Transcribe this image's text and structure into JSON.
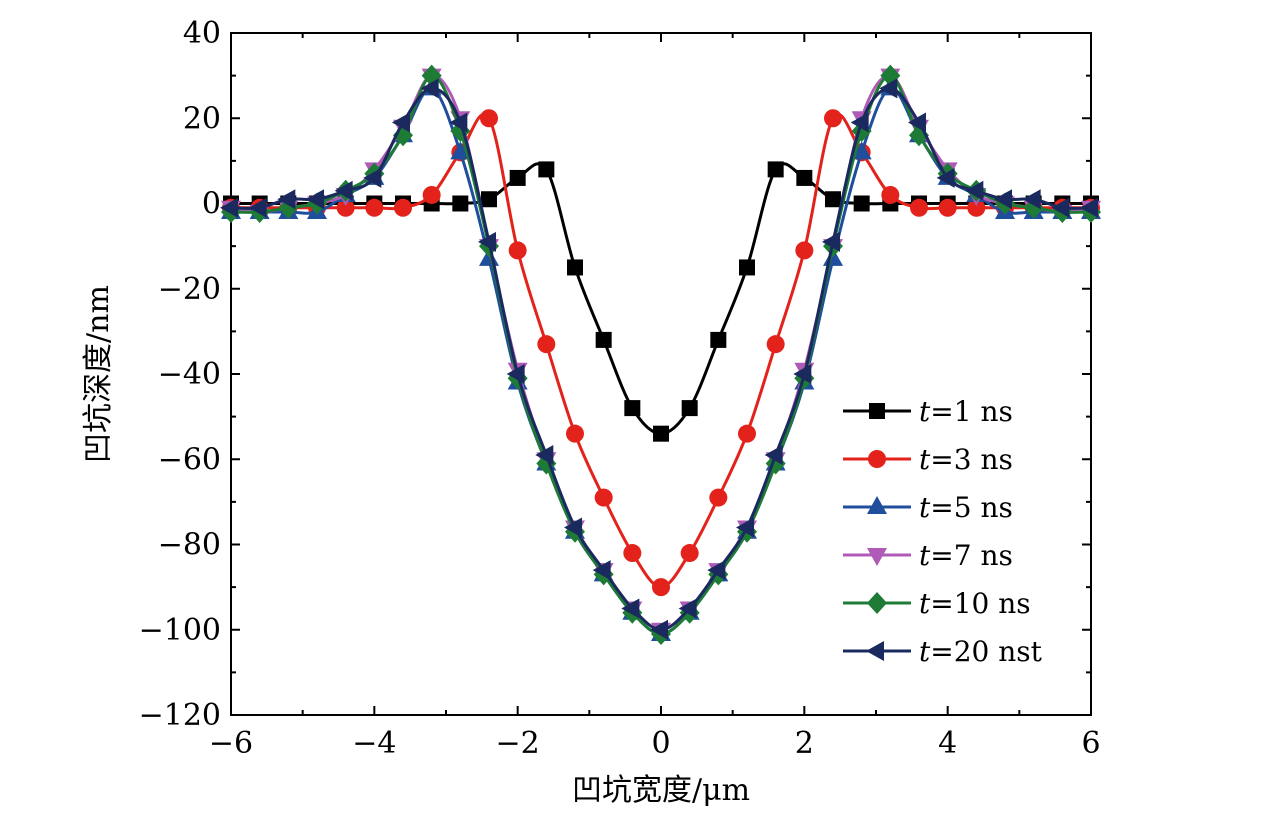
{
  "chart_data": {
    "type": "line",
    "xlabel": "凹坑宽度/μm",
    "ylabel": "凹坑深度/nm",
    "xlim": [
      -6,
      6
    ],
    "ylim": [
      -120,
      40
    ],
    "xticks": [
      -6,
      -4,
      -2,
      0,
      2,
      4,
      6
    ],
    "yticks": [
      40,
      20,
      0,
      -20,
      -40,
      -60,
      -80,
      -100,
      -120
    ],
    "xtick_labels": [
      "−6",
      "−4",
      "−2",
      "0",
      "2",
      "4",
      "6"
    ],
    "ytick_labels": [
      "40",
      "20",
      "0",
      "−20",
      "−40",
      "−60",
      "−80",
      "−100",
      "−120"
    ],
    "grid": false,
    "legend_position": "right",
    "series": [
      {
        "name": "t=1 ns",
        "legend_var": "t",
        "legend_rest": "=1 ns",
        "color": "#000000",
        "marker": "square",
        "x": [
          -6,
          -5.6,
          -5.2,
          -4.8,
          -4.4,
          -4.0,
          -3.6,
          -3.2,
          -2.8,
          -2.4,
          -2.0,
          -1.6,
          -1.2,
          -0.8,
          -0.4,
          0,
          0.4,
          0.8,
          1.2,
          1.6,
          2.0,
          2.4,
          2.8,
          3.2,
          3.6,
          4.0,
          4.4,
          4.8,
          5.2,
          5.6,
          6
        ],
        "y": [
          0,
          0,
          0,
          0,
          0,
          0,
          0,
          0,
          0,
          1,
          6,
          8,
          -15,
          -32,
          -48,
          -54,
          -48,
          -32,
          -15,
          8,
          6,
          1,
          0,
          0,
          0,
          0,
          0,
          0,
          0,
          0,
          0
        ]
      },
      {
        "name": "t=3 ns",
        "legend_var": "t",
        "legend_rest": "=3 ns",
        "color": "#e3231b",
        "marker": "circle",
        "x": [
          -6,
          -5.6,
          -5.2,
          -4.8,
          -4.4,
          -4.0,
          -3.6,
          -3.2,
          -2.8,
          -2.4,
          -2.0,
          -1.6,
          -1.2,
          -0.8,
          -0.4,
          0,
          0.4,
          0.8,
          1.2,
          1.6,
          2.0,
          2.4,
          2.8,
          3.2,
          3.6,
          4.0,
          4.4,
          4.8,
          5.2,
          5.6,
          6
        ],
        "y": [
          -1,
          -1,
          -1,
          -1,
          -1,
          -1,
          -1,
          2,
          12,
          20,
          -11,
          -33,
          -54,
          -69,
          -82,
          -90,
          -82,
          -69,
          -54,
          -33,
          -11,
          20,
          12,
          2,
          -1,
          -1,
          -1,
          -1,
          -1,
          -1,
          -1
        ]
      },
      {
        "name": "t=5 ns",
        "legend_var": "t",
        "legend_rest": "=5 ns",
        "color": "#1f4e9c",
        "marker": "triangle-up",
        "x": [
          -6,
          -5.6,
          -5.2,
          -4.8,
          -4.4,
          -4.0,
          -3.6,
          -3.2,
          -2.8,
          -2.4,
          -2.0,
          -1.6,
          -1.2,
          -0.8,
          -0.4,
          0,
          0.4,
          0.8,
          1.2,
          1.6,
          2.0,
          2.4,
          2.8,
          3.2,
          3.6,
          4.0,
          4.4,
          4.8,
          5.2,
          5.6,
          6
        ],
        "y": [
          -2,
          -2,
          -2,
          -2,
          2,
          6,
          16,
          27,
          12,
          -13,
          -42,
          -61,
          -77,
          -87,
          -96,
          -101,
          -96,
          -87,
          -77,
          -61,
          -42,
          -13,
          12,
          27,
          16,
          6,
          2,
          -2,
          -2,
          -2,
          -2
        ]
      },
      {
        "name": "t=7 ns",
        "legend_var": "t",
        "legend_rest": "=7 ns",
        "color": "#b05ab8",
        "marker": "triangle-down",
        "x": [
          -6,
          -5.6,
          -5.2,
          -4.8,
          -4.4,
          -4.0,
          -3.6,
          -3.2,
          -2.8,
          -2.4,
          -2.0,
          -1.6,
          -1.2,
          -0.8,
          -0.4,
          0,
          0.4,
          0.8,
          1.2,
          1.6,
          2.0,
          2.4,
          2.8,
          3.2,
          3.6,
          4.0,
          4.4,
          4.8,
          5.2,
          5.6,
          6
        ],
        "y": [
          -1,
          -2,
          -1,
          0,
          2,
          8,
          18,
          30,
          20,
          -10,
          -39,
          -60,
          -76,
          -86,
          -95,
          -100,
          -95,
          -86,
          -76,
          -60,
          -39,
          -10,
          20,
          30,
          18,
          8,
          2,
          0,
          -1,
          -2,
          -1
        ]
      },
      {
        "name": "t=10 ns",
        "legend_var": "t",
        "legend_rest": "=10 ns",
        "color": "#1e7b35",
        "marker": "diamond",
        "x": [
          -6,
          -5.6,
          -5.2,
          -4.8,
          -4.4,
          -4.0,
          -3.6,
          -3.2,
          -2.8,
          -2.4,
          -2.0,
          -1.6,
          -1.2,
          -0.8,
          -0.4,
          0,
          0.4,
          0.8,
          1.2,
          1.6,
          2.0,
          2.4,
          2.8,
          3.2,
          3.6,
          4.0,
          4.4,
          4.8,
          5.2,
          5.6,
          6
        ],
        "y": [
          -2,
          -2,
          -1,
          0,
          3,
          7,
          16,
          30,
          17,
          -10,
          -41,
          -61,
          -77,
          -87,
          -96,
          -101,
          -96,
          -87,
          -77,
          -61,
          -41,
          -10,
          17,
          30,
          16,
          7,
          3,
          0,
          -1,
          -2,
          -2
        ]
      },
      {
        "name": "t=20 nst",
        "legend_var": "t",
        "legend_rest": "=20 nst",
        "color": "#1b2a5e",
        "marker": "triangle-left",
        "x": [
          -6,
          -5.6,
          -5.2,
          -4.8,
          -4.4,
          -4.0,
          -3.6,
          -3.2,
          -2.8,
          -2.4,
          -2.0,
          -1.6,
          -1.2,
          -0.8,
          -0.4,
          0,
          0.4,
          0.8,
          1.2,
          1.6,
          2.0,
          2.4,
          2.8,
          3.2,
          3.6,
          4.0,
          4.4,
          4.8,
          5.2,
          5.6,
          6
        ],
        "y": [
          -1,
          -1,
          1,
          1,
          3,
          6,
          19,
          27,
          19,
          -9,
          -40,
          -59,
          -76,
          -86,
          -95,
          -100,
          -95,
          -86,
          -76,
          -59,
          -40,
          -9,
          19,
          27,
          19,
          6,
          3,
          1,
          1,
          -1,
          -1
        ]
      }
    ]
  }
}
